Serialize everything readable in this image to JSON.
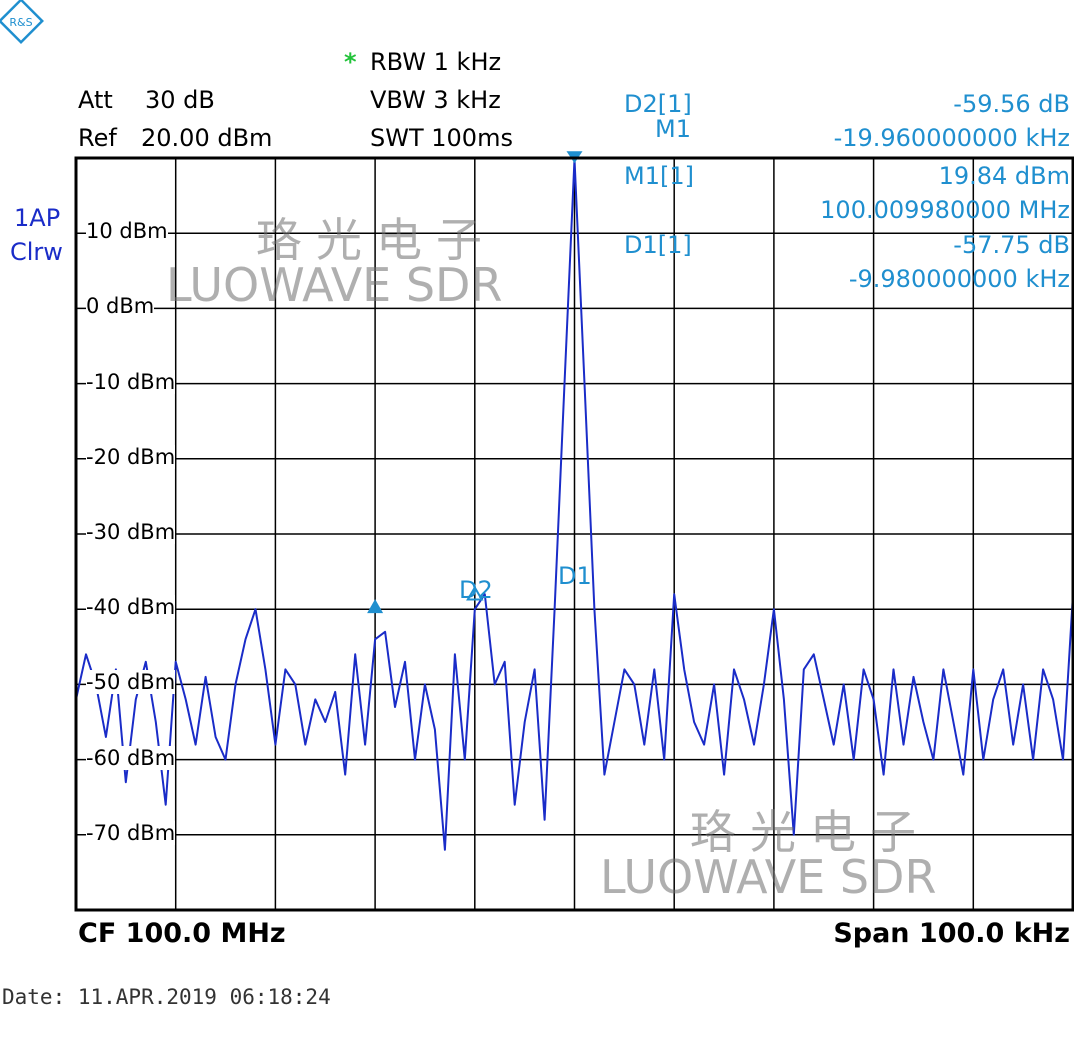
{
  "logo_text": "R&S",
  "settings": {
    "rbw_star": "*",
    "rbw": "RBW 1 kHz",
    "att_label": "Att",
    "att_value": "30 dB",
    "vbw": "VBW 3 kHz",
    "ref_label": "Ref",
    "ref_value": "20.00 dBm",
    "swt": "SWT 100ms"
  },
  "trace_info": {
    "line1": "1AP",
    "line2": "Clrw"
  },
  "markers": {
    "d2_label": "D2[1]",
    "d2_val1": "-59.56 dB",
    "d2_val2": "-19.960000000 kHz",
    "m1_label": "M1[1]",
    "m1_val1": "19.84 dBm",
    "m1_val2": "100.009980000 MHz",
    "d1_label": "D1[1]",
    "d1_val1": "-57.75 dB",
    "d1_val2": "-9.980000000 kHz"
  },
  "marker_tags": {
    "m1": "M1",
    "d1": "D1",
    "d2": "D2"
  },
  "footer": {
    "cf": "CF 100.0 MHz",
    "span": "Span 100.0 kHz"
  },
  "date": "Date: 11.APR.2019   06:18:24",
  "watermark": {
    "cn": "珞光电子",
    "en": "LUOWAVE SDR"
  },
  "colors": {
    "trace": "#1a2cc8",
    "marker": "#1f8fcf",
    "grid": "#000000",
    "status_star": "#22c33a"
  },
  "chart_data": {
    "type": "line",
    "title": "",
    "xlabel": "",
    "ylabel": "",
    "xlim": [
      -50,
      50
    ],
    "ylim": [
      -80,
      20
    ],
    "x_unit": "kHz offset from CF",
    "y_unit": "dBm",
    "yticks": [
      {
        "v": 10,
        "label": "10 dBm"
      },
      {
        "v": 0,
        "label": "0 dBm"
      },
      {
        "v": -10,
        "label": "-10 dBm"
      },
      {
        "v": -20,
        "label": "-20 dBm"
      },
      {
        "v": -30,
        "label": "-30 dBm"
      },
      {
        "v": -40,
        "label": "-40 dBm"
      },
      {
        "v": -50,
        "label": "-50 dBm"
      },
      {
        "v": -60,
        "label": "-60 dBm"
      },
      {
        "v": -70,
        "label": "-70 dBm"
      }
    ],
    "grid": true,
    "series": [
      {
        "x": [
          -50,
          -49,
          -48,
          -47,
          -46,
          -45,
          -44,
          -43,
          -42,
          -41,
          -40,
          -39,
          -38,
          -37,
          -36,
          -35,
          -34,
          -33,
          -32,
          -31,
          -30,
          -29,
          -28,
          -27,
          -26,
          -25,
          -24,
          -23,
          -22,
          -21,
          -20,
          -19,
          -18,
          -17,
          -16,
          -15,
          -14,
          -13,
          -12,
          -11,
          -10,
          -9,
          -8,
          -7,
          -6,
          -5,
          -4,
          -3,
          -2,
          -1,
          0,
          1,
          2,
          3,
          4,
          5,
          6,
          7,
          8,
          9,
          10,
          11,
          12,
          13,
          14,
          15,
          16,
          17,
          18,
          19,
          20,
          21,
          22,
          23,
          24,
          25,
          26,
          27,
          28,
          29,
          30,
          31,
          32,
          33,
          34,
          35,
          36,
          37,
          38,
          39,
          40,
          41,
          42,
          43,
          44,
          45,
          46,
          47,
          48,
          49,
          50
        ],
        "y": [
          -52,
          -46,
          -50,
          -57,
          -48,
          -63,
          -52,
          -47,
          -55,
          -66,
          -47,
          -52,
          -58,
          -49,
          -57,
          -60,
          -50,
          -44,
          -40,
          -48,
          -58,
          -48,
          -50,
          -58,
          -52,
          -55,
          -51,
          -62,
          -46,
          -58,
          -44,
          -43,
          -53,
          -47,
          -60,
          -50,
          -56,
          -72,
          -46,
          -60,
          -40,
          -38,
          -50,
          -47,
          -66,
          -55,
          -48,
          -68,
          -40,
          -10,
          19.84,
          -10,
          -40,
          -62,
          -55,
          -48,
          -50,
          -58,
          -48,
          -60,
          -38,
          -48,
          -55,
          -58,
          -50,
          -62,
          -48,
          -52,
          -58,
          -50,
          -40,
          -52,
          -70,
          -48,
          -46,
          -52,
          -58,
          -50,
          -60,
          -48,
          -52,
          -62,
          -48,
          -58,
          -49,
          -55,
          -60,
          -48,
          -55,
          -62,
          -48,
          -60,
          -52,
          -48,
          -58,
          -50,
          -60,
          -48,
          -52,
          -60,
          -38
        ]
      }
    ],
    "markers": [
      {
        "name": "M1",
        "x": 0,
        "y": 19.84
      },
      {
        "name": "D1",
        "x": -10,
        "y": -37.91
      },
      {
        "name": "D2",
        "x": -20,
        "y": -39.72
      }
    ]
  }
}
